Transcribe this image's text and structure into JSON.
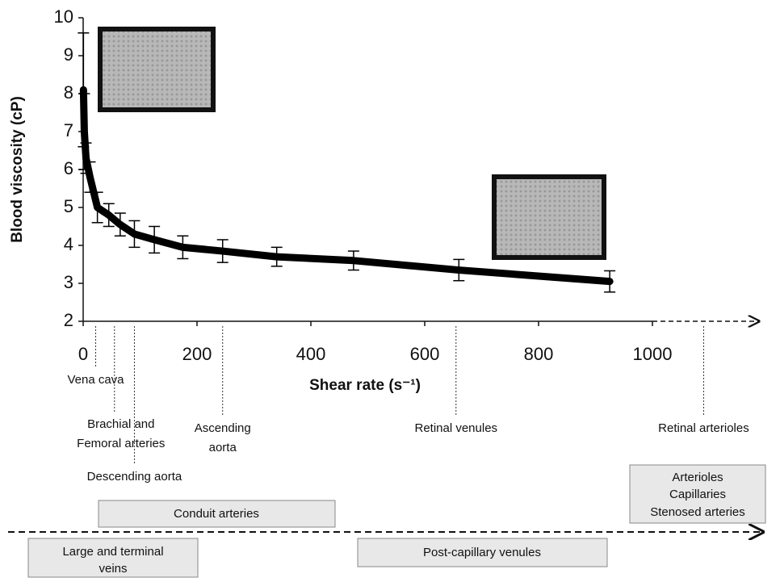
{
  "chart_data": {
    "type": "line",
    "y_label": "Blood viscosity (cP)",
    "x_label": "Shear rate (s⁻¹)",
    "x": [
      0.5,
      2,
      5,
      12,
      25,
      45,
      65,
      90,
      125,
      175,
      245,
      340,
      475,
      660,
      925
    ],
    "values": [
      8.1,
      7.0,
      6.3,
      5.8,
      5.0,
      4.8,
      4.55,
      4.3,
      4.15,
      3.95,
      3.85,
      3.7,
      3.6,
      3.35,
      3.05
    ],
    "errors": [
      1.5,
      1.0,
      0.4,
      0.4,
      0.4,
      0.3,
      0.3,
      0.35,
      0.35,
      0.3,
      0.3,
      0.25,
      0.25,
      0.28,
      0.28
    ],
    "color": "#000000",
    "xlim": [
      0,
      1000
    ],
    "ylim": [
      2,
      10
    ],
    "xticks": [
      0,
      200,
      400,
      600,
      800,
      1000
    ],
    "yticks": [
      2,
      3,
      4,
      5,
      6,
      7,
      8,
      9,
      10
    ],
    "vessel_markers": [
      {
        "x": 22,
        "lines": [
          "Vena cava"
        ]
      },
      {
        "x": 55,
        "lines": [
          "Brachial and",
          "Femoral arteries"
        ]
      },
      {
        "x": 90,
        "lines": [
          "Descending aorta"
        ]
      },
      {
        "x": 245,
        "lines": [
          "Ascending",
          "aorta"
        ]
      },
      {
        "x": 655,
        "lines": [
          "Retinal venules"
        ]
      },
      {
        "x": 1090,
        "lines": [
          "Retinal arterioles"
        ]
      }
    ],
    "groups": {
      "conduit": [
        "Conduit arteries"
      ],
      "arterioles": [
        "Arterioles",
        "Capillaries",
        "Stenosed arteries"
      ],
      "veins": [
        "Large and terminal",
        "veins"
      ],
      "venules": [
        "Post-capillary venules"
      ]
    }
  }
}
